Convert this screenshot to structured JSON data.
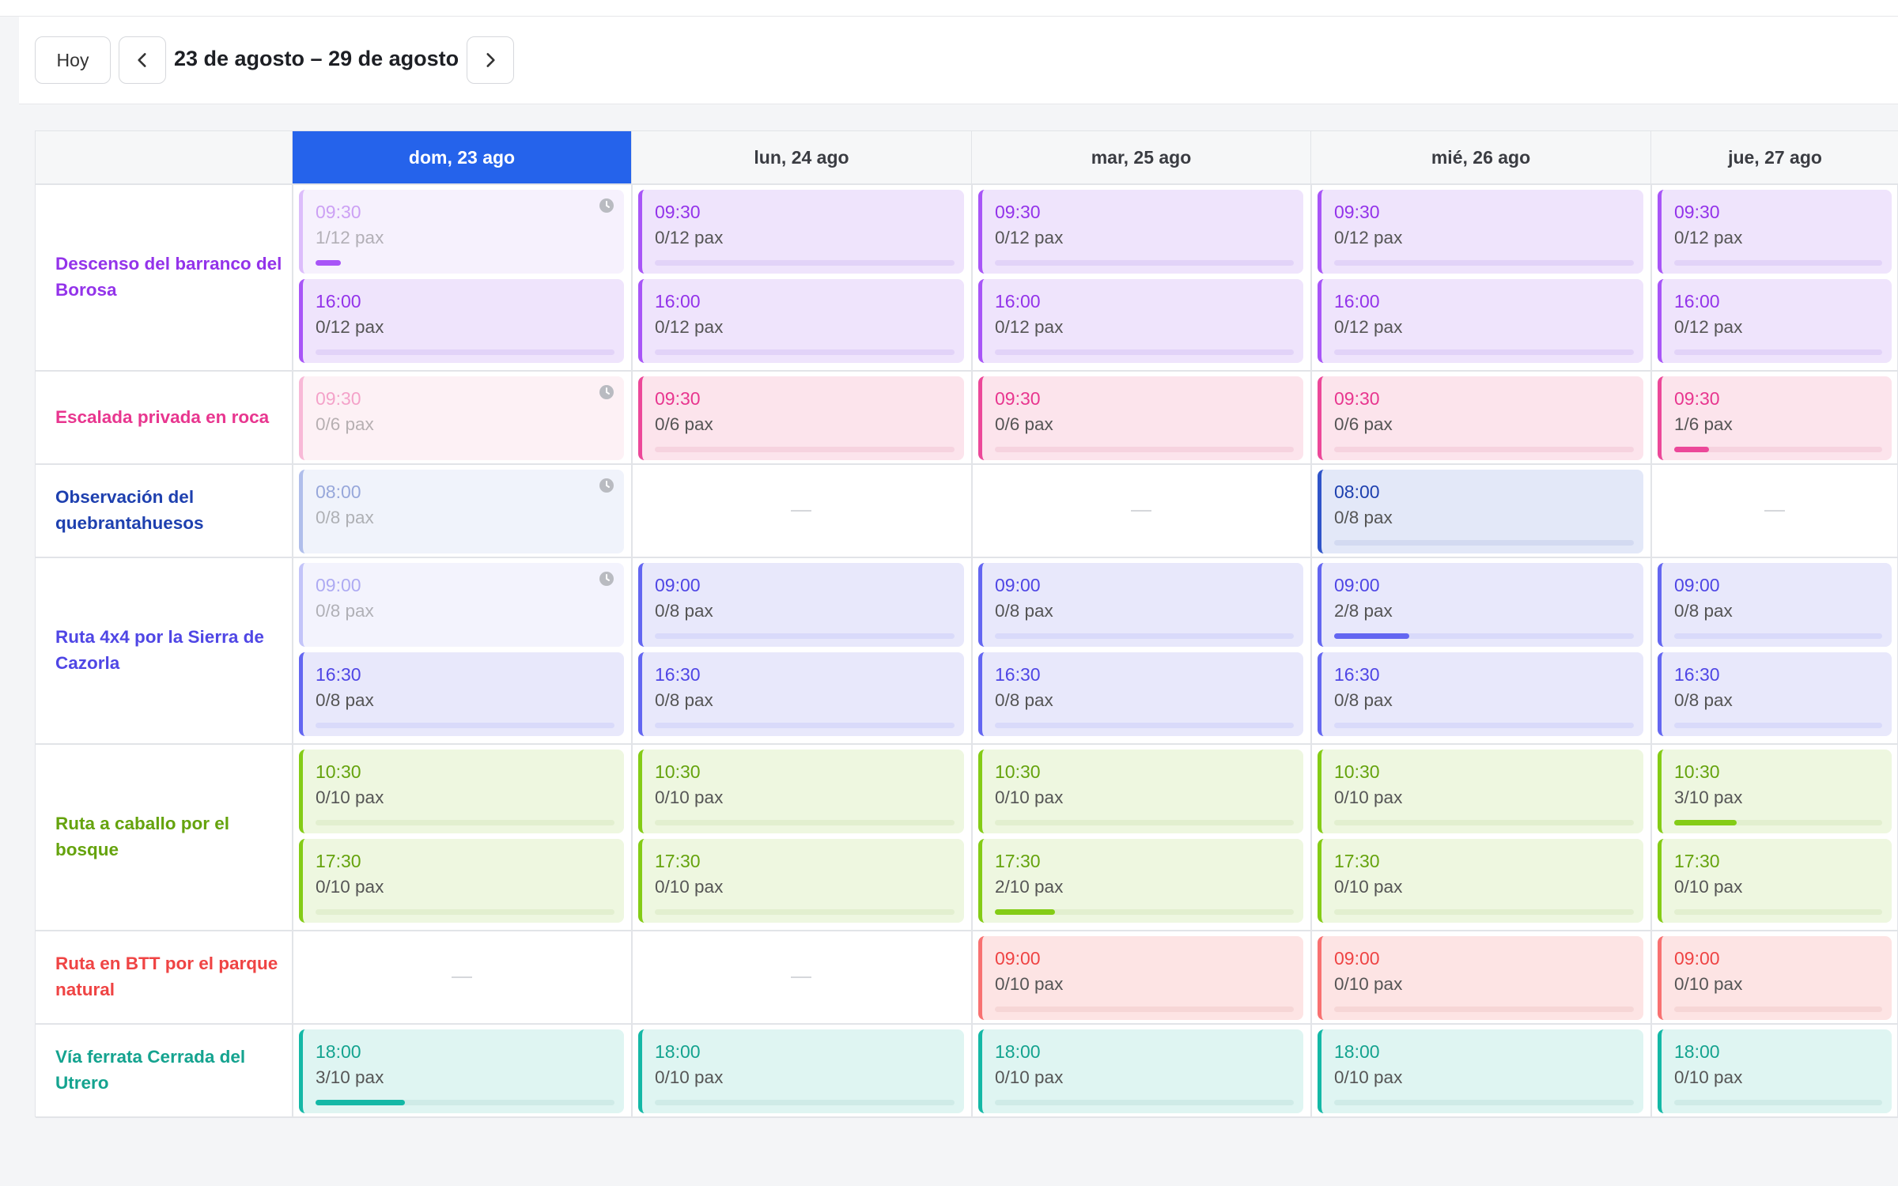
{
  "toolbar": {
    "today_label": "Hoy",
    "range_label": "23 de agosto – 29 de agosto",
    "prev_icon": "chevron-left-icon",
    "next_icon": "chevron-right-icon"
  },
  "days": [
    "dom, 23 ago",
    "lun, 24 ago",
    "mar, 25 ago",
    "mié, 26 ago",
    "jue, 27 ago"
  ],
  "active_day": 0,
  "activities": [
    {
      "name": "Descenso del barranco del Borosa",
      "color": "#a855f7",
      "slot_bg": "#efe4fc",
      "label_color": "#9333ea",
      "track": "#e2d3f8",
      "times": [
        "09:30",
        "16:00"
      ],
      "capacity": 12,
      "booked": [
        [
          1,
          0
        ],
        [
          0,
          0
        ],
        [
          0,
          0
        ],
        [
          0,
          0
        ],
        [
          0,
          0
        ]
      ],
      "past_days": [
        [
          true,
          false
        ],
        [
          false,
          false
        ],
        [
          false,
          false
        ],
        [
          false,
          false
        ],
        [
          false,
          false
        ]
      ],
      "available": [
        [
          true,
          true
        ],
        [
          true,
          true
        ],
        [
          true,
          true
        ],
        [
          true,
          true
        ],
        [
          true,
          true
        ]
      ]
    },
    {
      "name": "Escalada privada en roca",
      "color": "#ec4899",
      "slot_bg": "#fce4ec",
      "label_color": "#e8368f",
      "track": "#f6d3df",
      "times": [
        "09:30"
      ],
      "capacity": 6,
      "booked": [
        [
          0
        ],
        [
          0
        ],
        [
          0
        ],
        [
          0
        ],
        [
          1
        ]
      ],
      "past_days": [
        [
          true
        ],
        [
          false
        ],
        [
          false
        ],
        [
          false
        ],
        [
          false
        ]
      ],
      "available": [
        [
          true
        ],
        [
          true
        ],
        [
          true
        ],
        [
          true
        ],
        [
          true
        ]
      ]
    },
    {
      "name": "Observación del quebrantahuesos",
      "color": "#2f54c9",
      "slot_bg": "#e3e8f8",
      "label_color": "#1e40af",
      "track": "#d3daf1",
      "times": [
        "08:00"
      ],
      "capacity": 8,
      "booked": [
        [
          0
        ],
        [
          0
        ],
        [
          0
        ],
        [
          0
        ],
        [
          0
        ]
      ],
      "past_days": [
        [
          true
        ],
        [
          false
        ],
        [
          false
        ],
        [
          false
        ],
        [
          false
        ]
      ],
      "available": [
        [
          true
        ],
        [
          false
        ],
        [
          false
        ],
        [
          true
        ],
        [
          false
        ]
      ]
    },
    {
      "name": "Ruta 4x4 por la Sierra de Cazorla",
      "color": "#6366f1",
      "slot_bg": "#e8e8fb",
      "label_color": "#4f46e5",
      "track": "#d9dafa",
      "times": [
        "09:00",
        "16:30"
      ],
      "capacity": 8,
      "booked": [
        [
          0,
          0
        ],
        [
          0,
          0
        ],
        [
          0,
          0
        ],
        [
          2,
          0
        ],
        [
          0,
          0
        ]
      ],
      "past_days": [
        [
          true,
          false
        ],
        [
          false,
          false
        ],
        [
          false,
          false
        ],
        [
          false,
          false
        ],
        [
          false,
          false
        ]
      ],
      "available": [
        [
          true,
          true
        ],
        [
          true,
          true
        ],
        [
          true,
          true
        ],
        [
          true,
          true
        ],
        [
          true,
          true
        ]
      ]
    },
    {
      "name": "Ruta a caballo por el bosque",
      "color": "#84cc16",
      "slot_bg": "#eef7e0",
      "label_color": "#65a30d",
      "track": "#e2efcf",
      "times": [
        "10:30",
        "17:30"
      ],
      "capacity": 10,
      "booked": [
        [
          0,
          0
        ],
        [
          0,
          0
        ],
        [
          0,
          2
        ],
        [
          0,
          0
        ],
        [
          3,
          0
        ]
      ],
      "past_days": [
        [
          false,
          false
        ],
        [
          false,
          false
        ],
        [
          false,
          false
        ],
        [
          false,
          false
        ],
        [
          false,
          false
        ]
      ],
      "available": [
        [
          true,
          true
        ],
        [
          true,
          true
        ],
        [
          true,
          true
        ],
        [
          true,
          true
        ],
        [
          true,
          true
        ]
      ]
    },
    {
      "name": "Ruta en BTT por el parque natural",
      "color": "#f87171",
      "slot_bg": "#fde4e4",
      "label_color": "#ef4444",
      "track": "#f6d6d6",
      "times": [
        "09:00"
      ],
      "capacity": 10,
      "booked": [
        [
          0
        ],
        [
          0
        ],
        [
          0
        ],
        [
          0
        ],
        [
          0
        ]
      ],
      "past_days": [
        [
          false
        ],
        [
          false
        ],
        [
          false
        ],
        [
          false
        ],
        [
          false
        ]
      ],
      "available": [
        [
          false
        ],
        [
          false
        ],
        [
          true
        ],
        [
          true
        ],
        [
          true
        ]
      ]
    },
    {
      "name": "Vía ferrata Cerrada del Utrero",
      "color": "#14b8a6",
      "slot_bg": "#dff5f2",
      "label_color": "#14a38f",
      "track": "#cfebe7",
      "times": [
        "18:00"
      ],
      "capacity": 10,
      "booked": [
        [
          3
        ],
        [
          0
        ],
        [
          0
        ],
        [
          0
        ],
        [
          0
        ]
      ],
      "past_days": [
        [
          false
        ],
        [
          false
        ],
        [
          false
        ],
        [
          false
        ],
        [
          false
        ]
      ],
      "available": [
        [
          true
        ],
        [
          true
        ],
        [
          true
        ],
        [
          true
        ],
        [
          true
        ]
      ]
    }
  ],
  "pax_suffix": "pax",
  "empty_marker": "—"
}
